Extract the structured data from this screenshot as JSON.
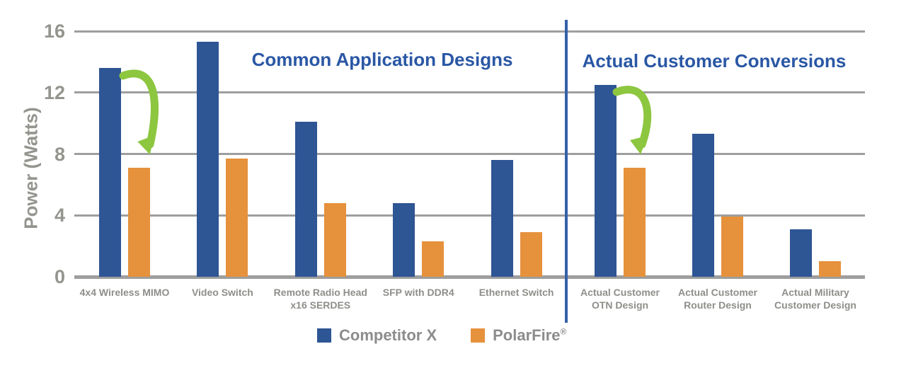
{
  "chart_data": {
    "type": "bar",
    "title": "",
    "ylabel": "Power (Watts)",
    "ylim": [
      0,
      16
    ],
    "yticks": [
      0,
      4,
      8,
      12,
      16
    ],
    "grid": true,
    "legend_position": "bottom",
    "sections": [
      {
        "title": "Common Application Designs",
        "categories_span": [
          0,
          4
        ]
      },
      {
        "title": "Actual Customer Conversions",
        "categories_span": [
          5,
          7
        ]
      }
    ],
    "categories": [
      "4x4 Wireless MIMO",
      "Video Switch",
      "Remote Radio Head\nx16 SERDES",
      "SFP with DDR4",
      "Ethernet Switch",
      "Actual Customer\nOTN Design",
      "Actual Customer\nRouter Design",
      "Actual Military\nCustomer Design"
    ],
    "series": [
      {
        "name": "Competitor X",
        "color": "#2E5594",
        "values": [
          13.6,
          15.3,
          10.1,
          4.8,
          7.6,
          12.5,
          9.3,
          3.1
        ]
      },
      {
        "name": "PolarFire®",
        "color": "#E6913C",
        "values": [
          7.1,
          7.7,
          4.8,
          2.3,
          2.9,
          7.1,
          3.9,
          1.0
        ]
      }
    ],
    "annotations": [
      {
        "type": "arrow",
        "color": "#8DC63F",
        "category_index": 0,
        "description": "green curved arrow from Competitor X bar down to PolarFire bar"
      },
      {
        "type": "arrow",
        "color": "#8DC63F",
        "category_index": 5,
        "description": "green curved arrow from Competitor X bar down to PolarFire bar"
      }
    ],
    "divider": {
      "color": "#3560A8",
      "between_categories": [
        4,
        5
      ]
    }
  },
  "legend": {
    "competitor_label": "Competitor X",
    "polarfire_label": "PolarFire",
    "polarfire_reg": "®"
  },
  "colors": {
    "blue": "#2E5594",
    "orange": "#E6913C",
    "green": "#8DC63F",
    "grid": "#9E9E9E",
    "axis_text": "#95958F",
    "label_text": "#8E8E8A",
    "legend_text": "#8C8C8C",
    "title_blue": "#2A57A5",
    "divider": "#3560A8"
  }
}
